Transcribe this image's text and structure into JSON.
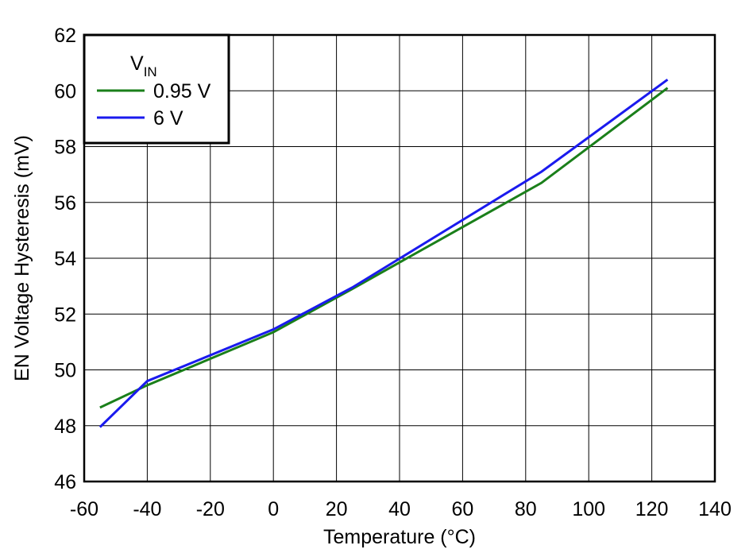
{
  "chart_data": {
    "type": "line",
    "xlabel": "Temperature (°C)",
    "ylabel": "EN Voltage Hysteresis (mV)",
    "legend_title": "V",
    "legend_title_sub": "IN",
    "legend": "top-left",
    "grid": true,
    "xlim": [
      -60,
      140
    ],
    "xticks": [
      -60,
      -40,
      -20,
      0,
      20,
      40,
      60,
      80,
      100,
      120,
      140
    ],
    "ylim": [
      46,
      62
    ],
    "yticks": [
      46,
      48,
      50,
      52,
      54,
      56,
      58,
      60,
      62
    ],
    "series": [
      {
        "name": "0.95 V",
        "color": "#1a7f1a",
        "x": [
          -55,
          -40,
          0,
          25,
          85,
          125
        ],
        "values": [
          48.65,
          49.45,
          51.35,
          52.9,
          56.7,
          60.1
        ]
      },
      {
        "name": "6 V",
        "color": "#1a1aee",
        "x": [
          -55,
          -40,
          0,
          25,
          85,
          125
        ],
        "values": [
          47.95,
          49.6,
          51.45,
          52.95,
          57.1,
          60.4
        ]
      }
    ]
  }
}
